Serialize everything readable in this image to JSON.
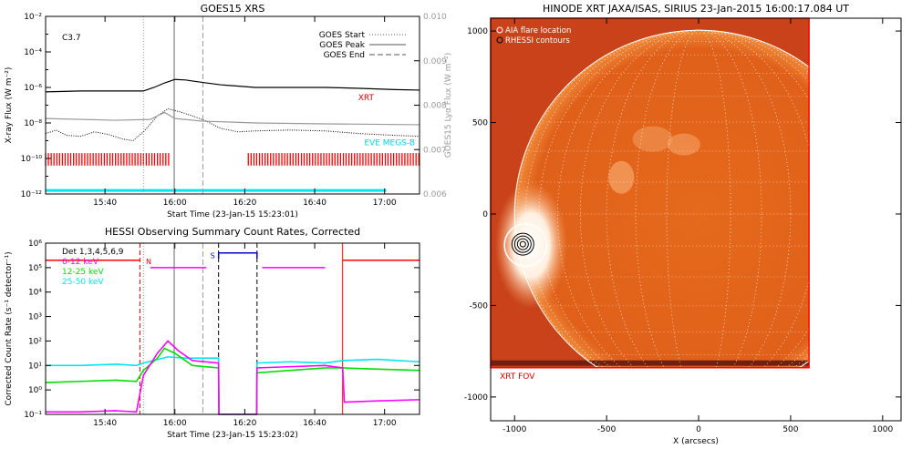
{
  "chart_data": [
    {
      "type": "line",
      "title": "GOES15 XRS",
      "xlabel": "Start Time (23-Jan-15 15:23:01)",
      "ylabel": "X-ray Flux (W m⁻²)",
      "y2label": "GOES15 Lyα Flux (W m⁻²)",
      "x_unit": "minutes after 15:23",
      "xlim": [
        0,
        107
      ],
      "ylim_log10": [
        -12,
        -2
      ],
      "y2lim": [
        0.006,
        0.01
      ],
      "xticks": [
        {
          "m": 17,
          "label": "15:40"
        },
        {
          "m": 37,
          "label": "16:00"
        },
        {
          "m": 57,
          "label": "16:20"
        },
        {
          "m": 77,
          "label": "16:40"
        },
        {
          "m": 97,
          "label": "17:00"
        }
      ],
      "yticks": [
        {
          "v": -12,
          "label": "10⁻¹²"
        },
        {
          "v": -10,
          "label": "10⁻¹⁰"
        },
        {
          "v": -8,
          "label": "10⁻⁸"
        },
        {
          "v": -6,
          "label": "10⁻⁶"
        },
        {
          "v": -4,
          "label": "10⁻⁴"
        },
        {
          "v": -2,
          "label": "10⁻²"
        }
      ],
      "y2ticks": [
        {
          "v": 0.006,
          "label": "0.006"
        },
        {
          "v": 0.007,
          "label": "0.007"
        },
        {
          "v": 0.008,
          "label": "0.008"
        },
        {
          "v": 0.009,
          "label": "0.009"
        },
        {
          "v": 0.01,
          "label": "0.010"
        }
      ],
      "flare_class": "C3.7",
      "markers": {
        "start": 28,
        "peak": 36.8,
        "end": 45
      },
      "legend": [
        {
          "label": "GOES Start",
          "style": "dotted"
        },
        {
          "label": "GOES Peak",
          "style": "solid"
        },
        {
          "label": "GOES End",
          "style": "dashed"
        }
      ],
      "series": [
        {
          "name": "long channel",
          "color": "#000000",
          "log10": [
            [
              0,
              -6.25
            ],
            [
              10,
              -6.2
            ],
            [
              20,
              -6.2
            ],
            [
              28,
              -6.2
            ],
            [
              31,
              -6.0
            ],
            [
              34,
              -5.75
            ],
            [
              37,
              -5.55
            ],
            [
              40,
              -5.58
            ],
            [
              45,
              -5.72
            ],
            [
              50,
              -5.85
            ],
            [
              60,
              -6.0
            ],
            [
              70,
              -6.0
            ],
            [
              80,
              -6.0
            ],
            [
              90,
              -6.05
            ],
            [
              100,
              -6.12
            ],
            [
              107,
              -6.15
            ]
          ]
        },
        {
          "name": "short channel",
          "color": "#000000",
          "style": "dotted",
          "log10": [
            [
              0,
              -8.6
            ],
            [
              3,
              -8.4
            ],
            [
              6,
              -8.7
            ],
            [
              10,
              -8.75
            ],
            [
              14,
              -8.5
            ],
            [
              18,
              -8.65
            ],
            [
              22,
              -8.9
            ],
            [
              25,
              -9.0
            ],
            [
              28,
              -8.5
            ],
            [
              32,
              -7.6
            ],
            [
              35,
              -7.2
            ],
            [
              38,
              -7.35
            ],
            [
              42,
              -7.6
            ],
            [
              46,
              -7.9
            ],
            [
              50,
              -8.3
            ],
            [
              55,
              -8.5
            ],
            [
              60,
              -8.45
            ],
            [
              70,
              -8.4
            ],
            [
              80,
              -8.45
            ],
            [
              90,
              -8.6
            ],
            [
              100,
              -8.7
            ],
            [
              107,
              -8.75
            ]
          ]
        },
        {
          "name": "Lyα flux",
          "color": "#999999",
          "log10": [
            [
              0,
              -7.75
            ],
            [
              20,
              -7.85
            ],
            [
              30,
              -7.8
            ],
            [
              34,
              -7.4
            ],
            [
              37,
              -7.75
            ],
            [
              45,
              -7.9
            ],
            [
              60,
              -8.0
            ],
            [
              80,
              -8.05
            ],
            [
              107,
              -8.1
            ]
          ]
        }
      ],
      "labels": {
        "xrt": "XRT",
        "eve": "EVE MEGS-B"
      },
      "xrt_coverage_minutes": [
        [
          0,
          35.5
        ],
        [
          58,
          107
        ]
      ],
      "eve_level_log10": -11.8
    },
    {
      "type": "line",
      "title": "HESSI Observing Summary Count Rates, Corrected",
      "xlabel": "Start Time (23-Jan-15 15:23:02)",
      "ylabel": "Corrected Count Rate (s⁻¹ detector⁻¹)",
      "x_unit": "minutes after 15:23",
      "xlim": [
        0,
        107
      ],
      "ylim_log10": [
        -1,
        6
      ],
      "xticks": [
        {
          "m": 17,
          "label": "15:40"
        },
        {
          "m": 37,
          "label": "16:00"
        },
        {
          "m": 57,
          "label": "16:20"
        },
        {
          "m": 77,
          "label": "16:40"
        },
        {
          "m": 97,
          "label": "17:00"
        }
      ],
      "yticks": [
        {
          "v": -1,
          "label": "10⁻¹"
        },
        {
          "v": 0,
          "label": "10⁰"
        },
        {
          "v": 1,
          "label": "10¹"
        },
        {
          "v": 2,
          "label": "10²"
        },
        {
          "v": 3,
          "label": "10³"
        },
        {
          "v": 4,
          "label": "10⁴"
        },
        {
          "v": 5,
          "label": "10⁵"
        },
        {
          "v": 6,
          "label": "10⁶"
        }
      ],
      "legend": [
        {
          "label": "Det 1,3,4,5,6,9",
          "color": "#000000"
        },
        {
          "label": "6-12 keV",
          "color": "#ff00ff"
        },
        {
          "label": "12-25 keV",
          "color": "#00dd00"
        },
        {
          "label": "25-50 keV",
          "color": "#00e5ee"
        }
      ],
      "markers": {
        "start": 28,
        "peak": 36.8,
        "end": 45
      },
      "red_lines_minutes": [
        27,
        85
      ],
      "night_interval_minutes": [
        49.5,
        60.5
      ],
      "flags": {
        "night": "N",
        "saa": "S",
        "n_minute": 29.5,
        "n_level_log10": 5.25,
        "s_start": 49.5,
        "s_end": 60.5,
        "s_level_log10": 5.6
      },
      "series": [
        {
          "name": "25-50 keV",
          "color": "#00e5ee",
          "log10": [
            [
              0,
              1.0
            ],
            [
              10,
              1.0
            ],
            [
              20,
              1.05
            ],
            [
              26,
              1.0
            ],
            [
              28,
              1.1
            ],
            [
              35,
              1.35
            ],
            [
              40,
              1.3
            ],
            [
              49.5,
              1.3
            ],
            [
              49.6,
              -1.0
            ],
            [
              60.4,
              -1.0
            ],
            [
              60.5,
              1.1
            ],
            [
              70,
              1.15
            ],
            [
              80,
              1.1
            ],
            [
              85,
              1.2
            ],
            [
              95,
              1.25
            ],
            [
              107,
              1.15
            ]
          ]
        },
        {
          "name": "12-25 keV",
          "color": "#00dd00",
          "log10": [
            [
              0,
              0.3
            ],
            [
              10,
              0.35
            ],
            [
              20,
              0.4
            ],
            [
              26,
              0.35
            ],
            [
              28,
              0.8
            ],
            [
              32,
              1.3
            ],
            [
              34,
              1.7
            ],
            [
              37,
              1.5
            ],
            [
              42,
              1.0
            ],
            [
              49.5,
              0.9
            ],
            [
              49.6,
              -1.0
            ],
            [
              60.4,
              -1.0
            ],
            [
              60.5,
              0.7
            ],
            [
              70,
              0.8
            ],
            [
              80,
              0.9
            ],
            [
              85,
              0.9
            ],
            [
              95,
              0.85
            ],
            [
              107,
              0.8
            ]
          ]
        },
        {
          "name": "6-12 keV",
          "color": "#ff00ff",
          "log10": [
            [
              0,
              -0.9
            ],
            [
              10,
              -0.9
            ],
            [
              20,
              -0.85
            ],
            [
              26,
              -0.9
            ],
            [
              28,
              0.6
            ],
            [
              32,
              1.5
            ],
            [
              35,
              2.0
            ],
            [
              38,
              1.6
            ],
            [
              42,
              1.2
            ],
            [
              49.5,
              1.1
            ],
            [
              49.6,
              -1.0
            ],
            [
              60.4,
              -1.0
            ],
            [
              60.5,
              0.9
            ],
            [
              70,
              0.95
            ],
            [
              80,
              1.0
            ],
            [
              85,
              0.9
            ],
            [
              85.5,
              -0.5
            ],
            [
              95,
              -0.45
            ],
            [
              107,
              -0.4
            ]
          ]
        }
      ],
      "plateaus": [
        {
          "color": "#ff0000",
          "from": 0,
          "to": 27,
          "log10": 5.3
        },
        {
          "color": "#ff00ff",
          "from": 30,
          "to": 46,
          "log10": 5.0
        },
        {
          "color": "#ff00ff",
          "from": 62,
          "to": 80,
          "log10": 5.0
        },
        {
          "color": "#ff0000",
          "from": 85,
          "to": 107,
          "log10": 5.3
        }
      ]
    },
    {
      "type": "heatmap",
      "title": "HINODE XRT JAXA/ISAS, SIRIUS 23-Jan-2015 16:00:17.084 UT",
      "xlabel": "X (arcsecs)",
      "ylabel": "",
      "xlim": [
        -1130,
        1100
      ],
      "ylim": [
        -1130,
        1070
      ],
      "xticks": [
        -1000,
        -500,
        0,
        500,
        1000
      ],
      "yticks": [
        -1000,
        -500,
        0,
        500,
        1000
      ],
      "solar_radius_arcsec": 1000,
      "xrt_fov": {
        "x": [
          -1130,
          600
        ],
        "y": [
          -840,
          1070
        ]
      },
      "flare_location": {
        "x": -940,
        "y": -170,
        "radius": 115
      },
      "rhessi_contour_center": {
        "x": -955,
        "y": -165
      },
      "legend": [
        "AIA flare location",
        "RHESSI contours"
      ],
      "fov_label": "XRT FOV",
      "grid_spacing_deg": 10
    }
  ]
}
